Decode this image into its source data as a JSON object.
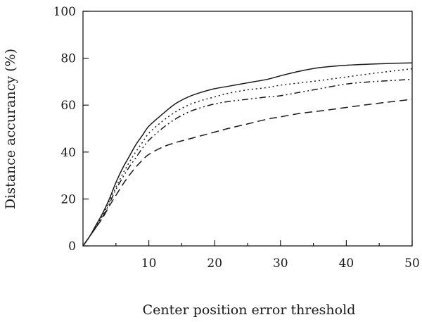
{
  "chart_data": {
    "type": "line",
    "title": "",
    "xlabel": "Center position error threshold",
    "ylabel": "Distance accurancy (%)",
    "xlim": [
      0,
      50
    ],
    "ylim": [
      0,
      100
    ],
    "x_ticks": [
      10,
      20,
      30,
      40,
      50
    ],
    "y_ticks": [
      0,
      20,
      40,
      60,
      80,
      100
    ],
    "grid": false,
    "legend": "none",
    "series": [
      {
        "style": "solid",
        "x": [
          0,
          1,
          2,
          3,
          4,
          5,
          6,
          7,
          8,
          9,
          10,
          12,
          14,
          16,
          18,
          20,
          22,
          25,
          28,
          30,
          33,
          36,
          40,
          44,
          47,
          50
        ],
        "y": [
          0,
          4,
          9,
          14,
          20,
          27,
          33,
          38,
          43,
          47,
          51,
          56,
          60.5,
          63.5,
          65.5,
          67,
          68,
          69.5,
          71,
          72.5,
          74.5,
          76,
          77,
          77.5,
          77.8,
          78
        ]
      },
      {
        "style": "dotted",
        "x": [
          0,
          1,
          2,
          3,
          4,
          5,
          6,
          7,
          8,
          9,
          10,
          12,
          14,
          16,
          18,
          20,
          22,
          25,
          28,
          30,
          33,
          36,
          40,
          44,
          47,
          50
        ],
        "y": [
          0,
          4,
          8.5,
          13,
          19,
          25,
          30.5,
          35.5,
          40,
          44,
          48,
          53,
          57,
          60,
          62,
          63.5,
          65,
          66.5,
          67.5,
          68.5,
          69.5,
          70.5,
          72,
          73.5,
          74.5,
          75.5
        ]
      },
      {
        "style": "dash-dot-dot",
        "x": [
          0,
          1,
          2,
          3,
          4,
          5,
          6,
          7,
          8,
          9,
          10,
          12,
          14,
          16,
          18,
          20,
          22,
          25,
          28,
          30,
          33,
          36,
          40,
          44,
          47,
          50
        ],
        "y": [
          0,
          4,
          8,
          12.5,
          18,
          24,
          29,
          33.5,
          37.5,
          41.5,
          45,
          50,
          54,
          57,
          59,
          60.5,
          61.5,
          62.5,
          63.5,
          64,
          65.5,
          67,
          69,
          70,
          70.5,
          71
        ]
      },
      {
        "style": "dashed",
        "x": [
          0,
          1,
          2,
          3,
          4,
          5,
          6,
          7,
          8,
          9,
          10,
          12,
          14,
          16,
          18,
          20,
          22,
          25,
          28,
          30,
          33,
          36,
          40,
          44,
          47,
          50
        ],
        "y": [
          0,
          4,
          8,
          12,
          17,
          21.5,
          26,
          30,
          33.5,
          36.5,
          39,
          42,
          44,
          45.5,
          47,
          48.5,
          50,
          52,
          54,
          55,
          56.5,
          57.5,
          59,
          60.5,
          61.5,
          62.5
        ]
      }
    ]
  }
}
